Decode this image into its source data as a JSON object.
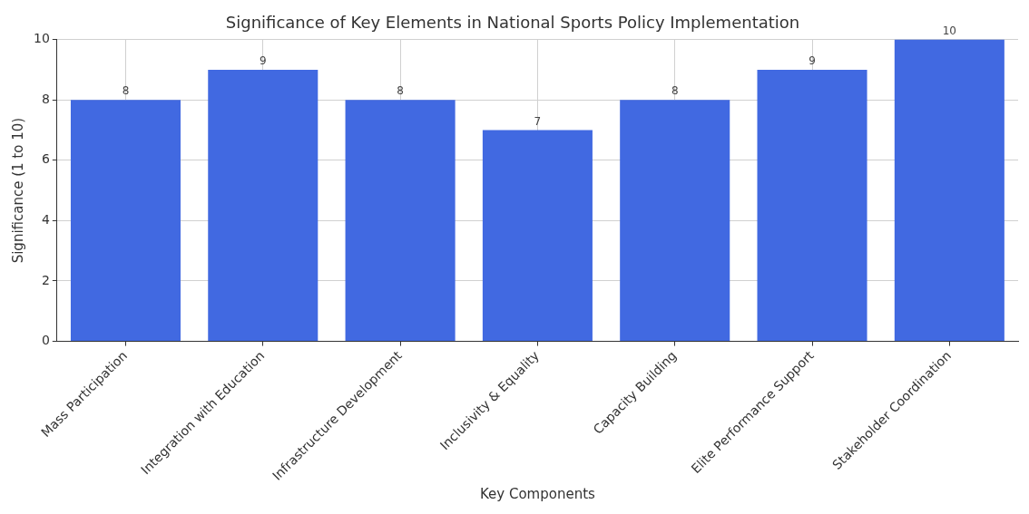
{
  "chart_data": {
    "type": "bar",
    "title": "Significance of Key Elements in National Sports Policy Implementation",
    "xlabel": "Key Components",
    "ylabel": "Significance (1 to 10)",
    "categories": [
      "Mass Participation",
      "Integration with Education",
      "Infrastructure Development",
      "Inclusivity & Equality",
      "Capacity Building",
      "Elite Performance Support",
      "Stakeholder Coordination"
    ],
    "values": [
      8,
      9,
      8,
      7,
      8,
      9,
      10
    ],
    "color": "#4169e1",
    "ylim": [
      0,
      10
    ],
    "yticks": [
      0,
      2,
      4,
      6,
      8,
      10
    ],
    "grid": true,
    "data_labels": true
  }
}
